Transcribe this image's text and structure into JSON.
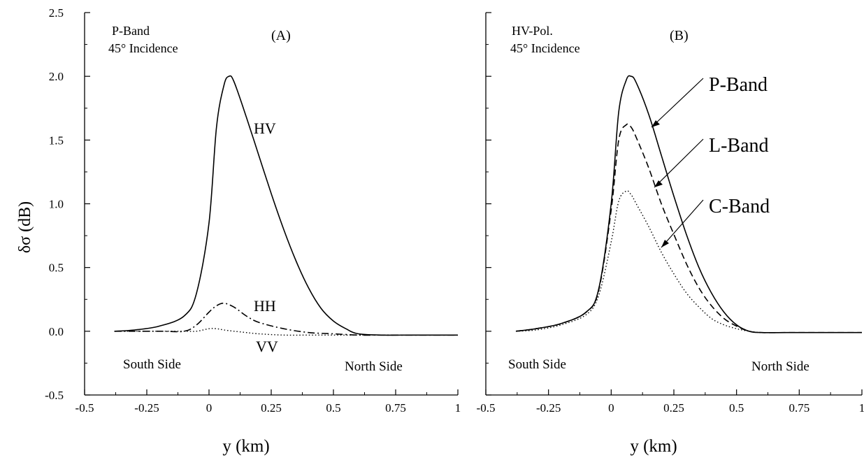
{
  "chart_data": [
    {
      "type": "line",
      "panel_label": "(A)",
      "notes": [
        "P-Band",
        "45° Incidence"
      ],
      "xlabel": "y  (km)",
      "ylabel": "δσ    (dB)",
      "xlim": [
        -0.5,
        1
      ],
      "ylim": [
        -0.5,
        2.5
      ],
      "xticks": [
        "-0.5",
        "-0.25",
        "0",
        "0.25",
        "0.5",
        "0.75",
        "1"
      ],
      "yticks": [
        "2.5",
        "2.0",
        "1.5",
        "1.0",
        "0.5",
        "0.0",
        "-0.5"
      ],
      "annotations": [
        "South Side",
        "North Side"
      ],
      "series": [
        {
          "name": "HV",
          "style": "solid",
          "x": [
            -0.38,
            -0.3,
            -0.2,
            -0.1,
            -0.05,
            0,
            0.03,
            0.06,
            0.08,
            0.1,
            0.15,
            0.2,
            0.25,
            0.3,
            0.35,
            0.4,
            0.45,
            0.5,
            0.55,
            0.6,
            0.7,
            0.8,
            0.9,
            1.0
          ],
          "y": [
            0.0,
            0.01,
            0.04,
            0.12,
            0.3,
            0.85,
            1.6,
            1.93,
            2.0,
            1.96,
            1.68,
            1.38,
            1.08,
            0.8,
            0.55,
            0.34,
            0.18,
            0.08,
            0.02,
            -0.02,
            -0.03,
            -0.03,
            -0.03,
            -0.03
          ]
        },
        {
          "name": "HH",
          "style": "dash-dot",
          "x": [
            -0.38,
            -0.2,
            -0.1,
            -0.05,
            0,
            0.03,
            0.06,
            0.1,
            0.15,
            0.2,
            0.3,
            0.4,
            0.5,
            0.6,
            0.7,
            0.8,
            1.0
          ],
          "y": [
            0.0,
            0.0,
            0.0,
            0.05,
            0.15,
            0.2,
            0.22,
            0.19,
            0.12,
            0.07,
            0.02,
            -0.01,
            -0.02,
            -0.03,
            -0.03,
            -0.03,
            -0.03
          ]
        },
        {
          "name": "VV",
          "style": "dotted",
          "x": [
            -0.38,
            -0.2,
            -0.1,
            -0.05,
            0,
            0.03,
            0.06,
            0.1,
            0.15,
            0.2,
            0.3,
            0.4,
            0.5,
            0.6,
            0.7,
            1.0
          ],
          "y": [
            0.0,
            0.0,
            0.0,
            0.0,
            0.02,
            0.02,
            0.01,
            0.0,
            -0.01,
            -0.02,
            -0.03,
            -0.03,
            -0.03,
            -0.03,
            -0.03,
            -0.03
          ]
        }
      ],
      "labels": {
        "HV": "HV",
        "HH": "HH",
        "VV": "VV"
      }
    },
    {
      "type": "line",
      "panel_label": "(B)",
      "notes": [
        "HV-Pol.",
        "45° Incidence"
      ],
      "xlabel": "y  (km)",
      "xlim": [
        -0.5,
        1
      ],
      "ylim": [
        -0.5,
        2.5
      ],
      "xticks": [
        "-0.5",
        "-0.25",
        "0",
        "0.25",
        "0.5",
        "0.75",
        "1"
      ],
      "annotations": [
        "South Side",
        "North Side"
      ],
      "series": [
        {
          "name": "P-Band",
          "style": "solid",
          "x": [
            -0.38,
            -0.3,
            -0.2,
            -0.1,
            -0.05,
            0,
            0.03,
            0.06,
            0.08,
            0.1,
            0.15,
            0.2,
            0.25,
            0.3,
            0.35,
            0.4,
            0.45,
            0.5,
            0.55,
            0.6,
            0.7,
            0.8,
            1.0
          ],
          "y": [
            0.0,
            0.02,
            0.06,
            0.15,
            0.33,
            1.0,
            1.72,
            1.97,
            2.0,
            1.95,
            1.7,
            1.38,
            1.06,
            0.76,
            0.5,
            0.3,
            0.15,
            0.05,
            0.0,
            -0.01,
            -0.01,
            -0.01,
            -0.01
          ]
        },
        {
          "name": "L-Band",
          "style": "dashed",
          "x": [
            -0.38,
            -0.3,
            -0.2,
            -0.1,
            -0.05,
            0,
            0.03,
            0.06,
            0.08,
            0.1,
            0.15,
            0.2,
            0.25,
            0.3,
            0.35,
            0.4,
            0.45,
            0.5,
            0.55,
            0.6,
            0.7,
            0.8,
            1.0
          ],
          "y": [
            0.0,
            0.02,
            0.06,
            0.15,
            0.32,
            0.95,
            1.5,
            1.62,
            1.6,
            1.52,
            1.28,
            1.0,
            0.76,
            0.53,
            0.34,
            0.2,
            0.1,
            0.04,
            0.0,
            -0.01,
            -0.01,
            -0.01,
            -0.01
          ]
        },
        {
          "name": "C-Band",
          "style": "dotted",
          "x": [
            -0.38,
            -0.3,
            -0.2,
            -0.1,
            -0.05,
            0,
            0.03,
            0.06,
            0.08,
            0.1,
            0.15,
            0.2,
            0.25,
            0.3,
            0.35,
            0.4,
            0.45,
            0.5,
            0.55,
            0.6,
            0.7,
            0.8,
            1.0
          ],
          "y": [
            0.0,
            0.01,
            0.05,
            0.13,
            0.28,
            0.7,
            1.02,
            1.1,
            1.07,
            1.0,
            0.82,
            0.62,
            0.45,
            0.3,
            0.19,
            0.1,
            0.05,
            0.02,
            0.0,
            -0.01,
            -0.01,
            -0.01,
            -0.01
          ]
        }
      ],
      "labels": {
        "P-Band": "P-Band",
        "L-Band": "L-Band",
        "C-Band": "C-Band"
      }
    }
  ]
}
